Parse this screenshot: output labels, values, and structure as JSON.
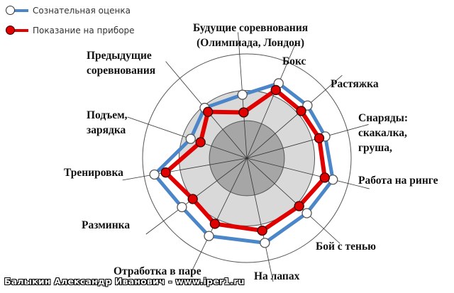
{
  "legend": {
    "items": [
      {
        "label": "Сознательная оценка",
        "color": "#4a86c8",
        "marker": "white-circle"
      },
      {
        "label": "Показание на приборе",
        "color": "#e00000",
        "marker": "red-circle"
      }
    ]
  },
  "labels": {
    "future_competitions": [
      "Будущие соревнования",
      "(Олимпиада, Лондон)"
    ],
    "boxing": "Бокс",
    "stretching": "Растяжка",
    "apparatus": [
      "Снаряды:",
      "скакалка,",
      "груша,"
    ],
    "ring_work": "Работа на ринге",
    "shadow_boxing": "Бой с тенью",
    "pads": "На лапах",
    "pair_drills": "Отработка в паре",
    "warmup": "Разминка",
    "training": "Тренировка",
    "wakeup": [
      "Подъем,",
      "зарядка"
    ],
    "previous_competitions": [
      "Предыдущие",
      "соревнования"
    ]
  },
  "watermark": "Балыкин Александр Иванович - www.iper1.ru",
  "chart_data": {
    "type": "radar",
    "axes": [
      "Будущие соревнования (Олимпиада, Лондон)",
      "Бокс",
      "Растяжка",
      "Снаряды: скакалка, груша,",
      "Работа на ринге",
      "Бой с тенью",
      "На лапах",
      "Отработка в паре",
      "Разминка",
      "Тренировка",
      "Подъем, зарядка",
      "Предыдущие соревнования"
    ],
    "range": [
      0,
      10
    ],
    "rings": [
      3.6,
      6.5,
      10
    ],
    "series": [
      {
        "name": "Сознательная оценка",
        "color": "#4a86c8",
        "values": [
          6.1,
          7.8,
          7.7,
          7.8,
          8.5,
          7.8,
          8.3,
          8.3,
          7.8,
          9.0,
          5.7,
          6.3
        ]
      },
      {
        "name": "Показание на приборе",
        "color": "#e00000",
        "values": [
          4.4,
          7.1,
          6.9,
          7.2,
          7.7,
          6.8,
          7.1,
          7.0,
          6.5,
          7.9,
          4.7,
          5.8
        ]
      }
    ]
  }
}
